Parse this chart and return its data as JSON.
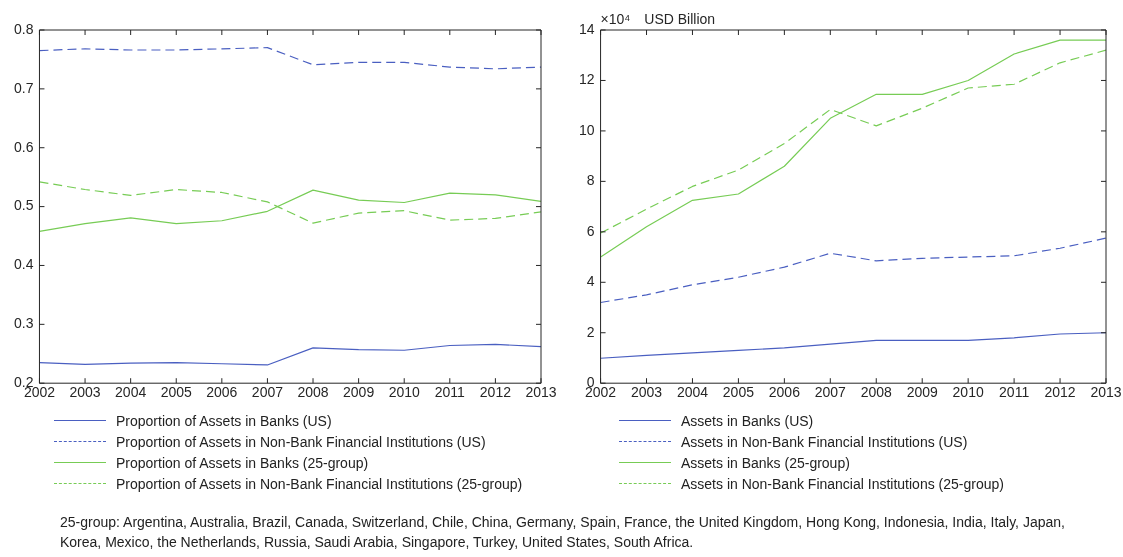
{
  "chart_data": [
    {
      "type": "line",
      "x": [
        2002,
        2003,
        2004,
        2005,
        2006,
        2007,
        2008,
        2009,
        2010,
        2011,
        2012,
        2013
      ],
      "xlim": [
        2002,
        2013
      ],
      "xticks": [
        2002,
        2003,
        2004,
        2005,
        2006,
        2007,
        2008,
        2009,
        2010,
        2011,
        2012,
        2013
      ],
      "ylim": [
        0.2,
        0.8
      ],
      "yticks": [
        0.2,
        0.3,
        0.4,
        0.5,
        0.6,
        0.7,
        0.8
      ],
      "grid": false,
      "legend": "bottom",
      "marker": "none",
      "series": [
        {
          "name": "Proportion of Assets in Banks (US)",
          "color": "#4a5fc1",
          "line_style": "solid",
          "values": [
            0.235,
            0.232,
            0.234,
            0.235,
            0.233,
            0.231,
            0.26,
            0.257,
            0.256,
            0.264,
            0.266,
            0.262
          ]
        },
        {
          "name": "Proportion of Assets in Non-Bank Financial Institutions (US)",
          "color": "#4a5fc1",
          "line_style": "dashed",
          "values": [
            0.765,
            0.768,
            0.766,
            0.766,
            0.768,
            0.77,
            0.741,
            0.745,
            0.745,
            0.737,
            0.734,
            0.737
          ]
        },
        {
          "name": "Proportion of Assets in Banks (25-group)",
          "color": "#77cc55",
          "line_style": "solid",
          "values": [
            0.458,
            0.471,
            0.481,
            0.471,
            0.476,
            0.492,
            0.528,
            0.511,
            0.507,
            0.523,
            0.52,
            0.509
          ]
        },
        {
          "name": "Proportion of Assets in Non-Bank Financial Institutions (25-group)",
          "color": "#77cc55",
          "line_style": "dashed",
          "values": [
            0.542,
            0.529,
            0.519,
            0.529,
            0.524,
            0.508,
            0.472,
            0.489,
            0.493,
            0.477,
            0.48,
            0.491
          ]
        }
      ]
    },
    {
      "type": "line",
      "ylabel": "USD Billion",
      "x": [
        2002,
        2003,
        2004,
        2005,
        2006,
        2007,
        2008,
        2009,
        2010,
        2011,
        2012,
        2013
      ],
      "xlim": [
        2002,
        2013
      ],
      "xticks": [
        2002,
        2003,
        2004,
        2005,
        2006,
        2007,
        2008,
        2009,
        2010,
        2011,
        2012,
        2013
      ],
      "ylim": [
        0,
        14
      ],
      "yticks": [
        0,
        2,
        4,
        6,
        8,
        10,
        12,
        14
      ],
      "grid": false,
      "legend": "bottom",
      "marker": "none",
      "annotations": [
        "×10⁴",
        "25-group: Argentina, Australia, Brazil, Canada, Switzerland, Chile, China, Germany, Spain, France, the United Kingdom, Hong Kong, Indonesia, India, Italy, Japan, Korea, Mexico, the Netherlands, Russia, Saudi Arabia, Singapore, Turkey, United States, South Africa."
      ],
      "series": [
        {
          "name": "Assets in Banks (US)",
          "color": "#4a5fc1",
          "line_style": "solid",
          "values": [
            0.99,
            1.1,
            1.2,
            1.3,
            1.4,
            1.55,
            1.7,
            1.7,
            1.7,
            1.8,
            1.95,
            2.0
          ]
        },
        {
          "name": "Assets in Non-Bank Financial Institutions (US)",
          "color": "#4a5fc1",
          "line_style": "dashed",
          "values": [
            3.2,
            3.5,
            3.9,
            4.2,
            4.6,
            5.15,
            4.85,
            4.95,
            5.0,
            5.05,
            5.35,
            5.75
          ]
        },
        {
          "name": "Assets in Banks (25-group)",
          "color": "#77cc55",
          "line_style": "solid",
          "values": [
            5.0,
            6.2,
            7.25,
            7.5,
            8.6,
            10.5,
            11.45,
            11.45,
            12.0,
            13.05,
            13.6,
            13.6
          ]
        },
        {
          "name": "Assets in Non-Bank Financial Institutions (25-group)",
          "color": "#77cc55",
          "line_style": "dashed",
          "values": [
            5.95,
            6.9,
            7.8,
            8.45,
            9.5,
            10.85,
            10.2,
            10.9,
            11.7,
            11.85,
            12.7,
            13.2
          ]
        }
      ]
    }
  ]
}
